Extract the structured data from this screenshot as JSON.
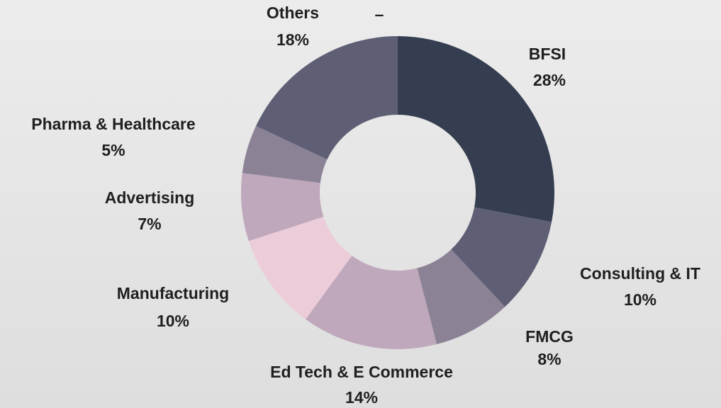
{
  "chart_data": {
    "type": "donut",
    "categories": [
      "BFSI",
      "Consulting & IT",
      "FMCG",
      "Ed Tech & E Commerce",
      "Manufacturing",
      "Advertising",
      "Pharma & Healthcare",
      "Others"
    ],
    "values": [
      28,
      10,
      8,
      14,
      10,
      7,
      5,
      18
    ],
    "value_labels": [
      "28%",
      "10%",
      "8%",
      "14%",
      "10%",
      "7%",
      "5%",
      "18%"
    ],
    "colors": [
      "#343e50",
      "#5e5f75",
      "#8c8296",
      "#bfa8bb",
      "#ecccd9",
      "#bfa8bb",
      "#8c8296",
      "#5e5f75"
    ],
    "annotations": [
      "–"
    ]
  }
}
